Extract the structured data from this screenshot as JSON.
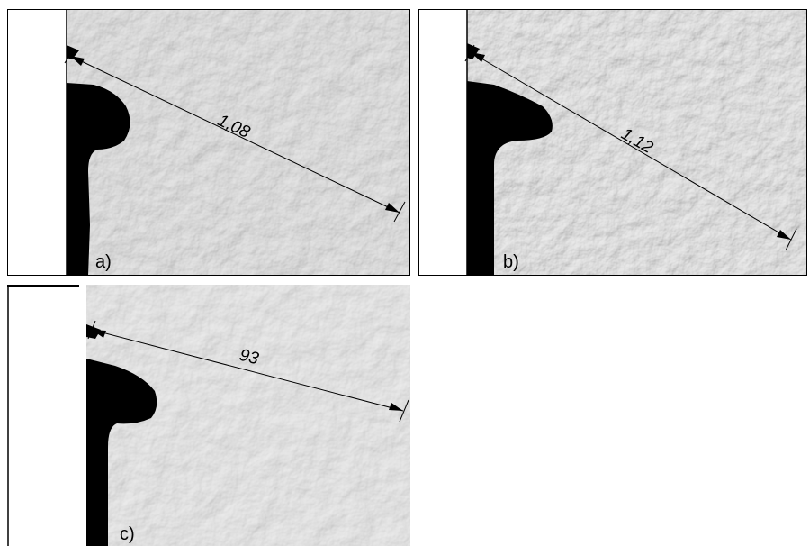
{
  "panels": [
    {
      "label": "a)",
      "dimension": "1,08"
    },
    {
      "label": "b)",
      "dimension": "1,12"
    },
    {
      "label": "c)",
      "dimension": "93"
    }
  ]
}
